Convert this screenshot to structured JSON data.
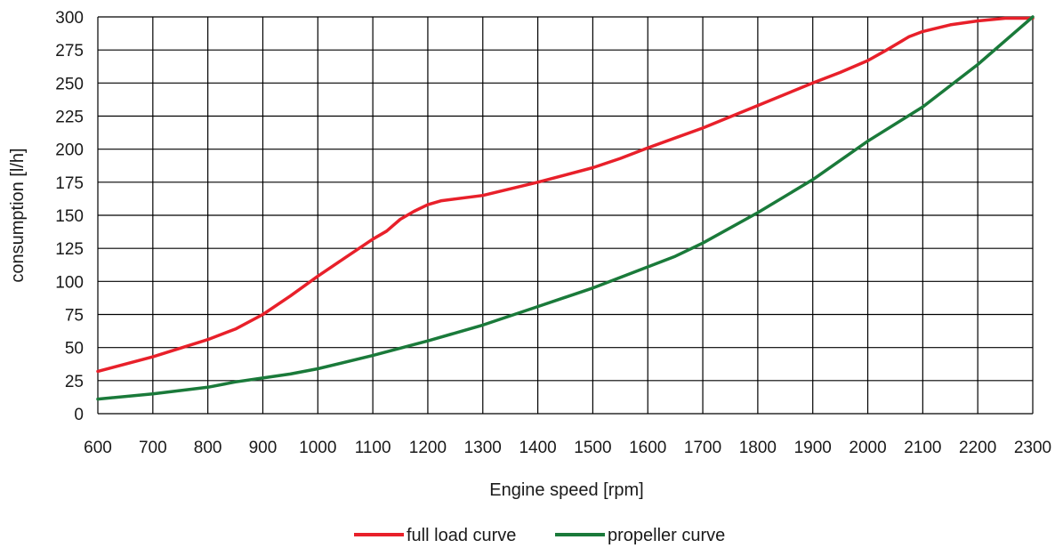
{
  "chart_data": {
    "type": "line",
    "title": "",
    "xlabel": "Engine speed [rpm]",
    "ylabel": "consumption [l/h]",
    "xlim": [
      600,
      2300
    ],
    "ylim": [
      0,
      300
    ],
    "grid": true,
    "legend_position": "bottom-center",
    "x_ticks": [
      600,
      700,
      800,
      900,
      1000,
      1100,
      1200,
      1300,
      1400,
      1500,
      1600,
      1700,
      1800,
      1900,
      2000,
      2100,
      2200,
      2300
    ],
    "y_ticks": [
      0,
      25,
      50,
      75,
      100,
      125,
      150,
      175,
      200,
      225,
      250,
      275,
      300
    ],
    "series": [
      {
        "name": "full load curve",
        "color": "#e8202a",
        "points": [
          [
            600,
            32
          ],
          [
            700,
            43
          ],
          [
            800,
            56
          ],
          [
            850,
            64
          ],
          [
            900,
            75
          ],
          [
            950,
            89
          ],
          [
            1000,
            104
          ],
          [
            1050,
            118
          ],
          [
            1100,
            132
          ],
          [
            1125,
            138
          ],
          [
            1150,
            147
          ],
          [
            1175,
            153
          ],
          [
            1200,
            158
          ],
          [
            1225,
            161
          ],
          [
            1300,
            165
          ],
          [
            1400,
            175
          ],
          [
            1500,
            186
          ],
          [
            1550,
            193
          ],
          [
            1600,
            201
          ],
          [
            1700,
            216
          ],
          [
            1800,
            233
          ],
          [
            1900,
            250
          ],
          [
            1950,
            258
          ],
          [
            2000,
            267
          ],
          [
            2030,
            274
          ],
          [
            2075,
            285
          ],
          [
            2100,
            289
          ],
          [
            2150,
            294
          ],
          [
            2200,
            297
          ],
          [
            2250,
            299
          ],
          [
            2300,
            299
          ]
        ]
      },
      {
        "name": "propeller curve",
        "color": "#1a7a3a",
        "points": [
          [
            600,
            11
          ],
          [
            700,
            15
          ],
          [
            800,
            20
          ],
          [
            850,
            24
          ],
          [
            900,
            27
          ],
          [
            950,
            30
          ],
          [
            1000,
            34
          ],
          [
            1100,
            44
          ],
          [
            1200,
            55
          ],
          [
            1300,
            67
          ],
          [
            1400,
            81
          ],
          [
            1500,
            95
          ],
          [
            1600,
            111
          ],
          [
            1650,
            119
          ],
          [
            1700,
            129
          ],
          [
            1800,
            152
          ],
          [
            1900,
            177
          ],
          [
            2000,
            206
          ],
          [
            2100,
            232
          ],
          [
            2200,
            264
          ],
          [
            2300,
            300
          ]
        ]
      }
    ]
  }
}
